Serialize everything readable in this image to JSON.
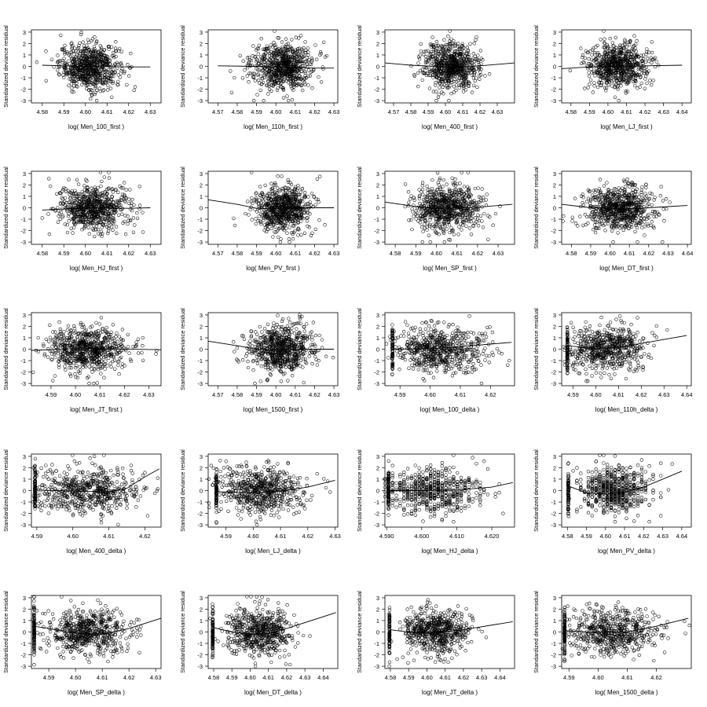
{
  "figure": {
    "ylabel": "Standardized deviance residual"
  },
  "chart_data": [
    {
      "type": "scatter",
      "xlabel": "log( Men_100_first )",
      "xticks": [
        4.58,
        4.59,
        4.6,
        4.61,
        4.62,
        4.63
      ],
      "xlim": [
        4.575,
        4.635
      ],
      "ylim": [
        -3,
        3
      ],
      "yticks": [
        -3,
        -2,
        -1,
        0,
        1,
        2,
        3
      ],
      "points_summary": {
        "n": 700,
        "x_center": 4.602,
        "x_spread": 0.007
      },
      "trend": [
        [
          4.58,
          0.1
        ],
        [
          4.59,
          0.05
        ],
        [
          4.6,
          0.0
        ],
        [
          4.61,
          -0.03
        ],
        [
          4.62,
          -0.05
        ],
        [
          4.63,
          -0.05
        ]
      ]
    },
    {
      "type": "scatter",
      "xlabel": "log( Men_110h_first )",
      "xticks": [
        4.57,
        4.58,
        4.59,
        4.6,
        4.61,
        4.62,
        4.63
      ],
      "xlim": [
        4.565,
        4.632
      ],
      "ylim": [
        -3,
        3
      ],
      "yticks": [
        -3,
        -2,
        -1,
        0,
        1,
        2,
        3
      ],
      "points_summary": {
        "n": 700,
        "x_center": 4.603,
        "x_spread": 0.008
      },
      "trend": [
        [
          4.57,
          0.05
        ],
        [
          4.59,
          0.0
        ],
        [
          4.6,
          -0.05
        ],
        [
          4.61,
          -0.1
        ],
        [
          4.62,
          -0.15
        ],
        [
          4.63,
          -0.15
        ]
      ]
    },
    {
      "type": "scatter",
      "xlabel": "log( Men_400_first )",
      "xticks": [
        4.57,
        4.58,
        4.59,
        4.6,
        4.61,
        4.62,
        4.63
      ],
      "xlim": [
        4.565,
        4.64
      ],
      "ylim": [
        -3,
        3
      ],
      "yticks": [
        -3,
        -2,
        -1,
        0,
        1,
        2,
        3
      ],
      "points_summary": {
        "n": 700,
        "x_center": 4.603,
        "x_spread": 0.008
      },
      "trend": [
        [
          4.565,
          0.3
        ],
        [
          4.58,
          0.1
        ],
        [
          4.6,
          -0.05
        ],
        [
          4.62,
          0.05
        ],
        [
          4.64,
          0.3
        ]
      ]
    },
    {
      "type": "scatter",
      "xlabel": "log( Men_LJ_first )",
      "xticks": [
        4.58,
        4.59,
        4.6,
        4.61,
        4.62,
        4.63,
        4.64
      ],
      "xlim": [
        4.575,
        4.645
      ],
      "ylim": [
        -3,
        3
      ],
      "yticks": [
        -3,
        -2,
        -1,
        0,
        1,
        2,
        3
      ],
      "points_summary": {
        "n": 700,
        "x_center": 4.605,
        "x_spread": 0.008
      },
      "trend": [
        [
          4.575,
          -0.2
        ],
        [
          4.59,
          -0.05
        ],
        [
          4.6,
          0.0
        ],
        [
          4.62,
          0.05
        ],
        [
          4.64,
          0.1
        ]
      ]
    },
    {
      "type": "scatter",
      "xlabel": "log( Men_HJ_first )",
      "xticks": [
        4.58,
        4.59,
        4.6,
        4.61,
        4.62,
        4.63
      ],
      "xlim": [
        4.575,
        4.635
      ],
      "ylim": [
        -3,
        3
      ],
      "yticks": [
        -3,
        -2,
        -1,
        0,
        1,
        2,
        3
      ],
      "points_summary": {
        "n": 700,
        "x_center": 4.603,
        "x_spread": 0.008
      },
      "trend": [
        [
          4.58,
          -0.2
        ],
        [
          4.6,
          0.0
        ],
        [
          4.62,
          -0.05
        ],
        [
          4.63,
          0.0
        ]
      ]
    },
    {
      "type": "scatter",
      "xlabel": "log( Men_PV_first )",
      "xticks": [
        4.57,
        4.58,
        4.59,
        4.6,
        4.61,
        4.62,
        4.63
      ],
      "xlim": [
        4.565,
        4.632
      ],
      "ylim": [
        -3,
        3
      ],
      "yticks": [
        -3,
        -2,
        -1,
        0,
        1,
        2,
        3
      ],
      "points_summary": {
        "n": 700,
        "x_center": 4.603,
        "x_spread": 0.007
      },
      "trend": [
        [
          4.565,
          0.7
        ],
        [
          4.58,
          0.3
        ],
        [
          4.59,
          -0.05
        ],
        [
          4.6,
          -0.1
        ],
        [
          4.61,
          0.0
        ],
        [
          4.63,
          0.0
        ]
      ]
    },
    {
      "type": "scatter",
      "xlabel": "log( Men_SP_first )",
      "xticks": [
        4.58,
        4.59,
        4.6,
        4.61,
        4.62,
        4.63
      ],
      "xlim": [
        4.575,
        4.638
      ],
      "ylim": [
        -3,
        3
      ],
      "yticks": [
        -3,
        -2,
        -1,
        0,
        1,
        2,
        3
      ],
      "points_summary": {
        "n": 700,
        "x_center": 4.605,
        "x_spread": 0.008
      },
      "trend": [
        [
          4.575,
          0.5
        ],
        [
          4.59,
          0.1
        ],
        [
          4.6,
          -0.05
        ],
        [
          4.62,
          0.05
        ],
        [
          4.637,
          0.3
        ]
      ]
    },
    {
      "type": "scatter",
      "xlabel": "log( Men_DT_first )",
      "xticks": [
        4.58,
        4.59,
        4.6,
        4.61,
        4.62,
        4.63,
        4.64
      ],
      "xlim": [
        4.575,
        4.642
      ],
      "ylim": [
        -3,
        3
      ],
      "yticks": [
        -3,
        -2,
        -1,
        0,
        1,
        2,
        3
      ],
      "points_summary": {
        "n": 700,
        "x_center": 4.605,
        "x_spread": 0.009
      },
      "trend": [
        [
          4.575,
          0.3
        ],
        [
          4.59,
          0.0
        ],
        [
          4.61,
          -0.1
        ],
        [
          4.63,
          0.1
        ],
        [
          4.64,
          0.2
        ]
      ]
    },
    {
      "type": "scatter",
      "xlabel": "log( Men_JT_first )",
      "xticks": [
        4.59,
        4.6,
        4.61,
        4.62,
        4.63
      ],
      "xlim": [
        4.582,
        4.635
      ],
      "ylim": [
        -3,
        3
      ],
      "yticks": [
        -3,
        -2,
        -1,
        0,
        1,
        2,
        3
      ],
      "points_summary": {
        "n": 700,
        "x_center": 4.605,
        "x_spread": 0.008
      },
      "trend": [
        [
          4.582,
          -0.1
        ],
        [
          4.6,
          0.05
        ],
        [
          4.61,
          0.05
        ],
        [
          4.635,
          -0.05
        ]
      ]
    },
    {
      "type": "scatter",
      "xlabel": "log( Men_1500_first )",
      "xticks": [
        4.57,
        4.58,
        4.59,
        4.6,
        4.61,
        4.62,
        4.63
      ],
      "xlim": [
        4.565,
        4.632
      ],
      "ylim": [
        -3,
        3
      ],
      "yticks": [
        -3,
        -2,
        -1,
        0,
        1,
        2,
        3
      ],
      "points_summary": {
        "n": 700,
        "x_center": 4.603,
        "x_spread": 0.008
      },
      "trend": [
        [
          4.565,
          0.7
        ],
        [
          4.58,
          0.3
        ],
        [
          4.59,
          0.0
        ],
        [
          4.6,
          -0.05
        ],
        [
          4.62,
          0.0
        ],
        [
          4.63,
          0.0
        ]
      ]
    },
    {
      "type": "scatter",
      "xlabel": "log( Men_100_delta )",
      "xticks": [
        4.59,
        4.6,
        4.61,
        4.62
      ],
      "xlim": [
        4.585,
        4.628
      ],
      "ylim": [
        -3,
        3
      ],
      "yticks": [
        -3,
        -2,
        -1,
        0,
        1,
        2,
        3
      ],
      "points_summary": {
        "n": 700,
        "x_center": 4.603,
        "x_spread": 0.008,
        "pile_x": 4.5875
      },
      "trend": [
        [
          4.5875,
          0.0
        ],
        [
          4.6,
          0.05
        ],
        [
          4.61,
          0.2
        ],
        [
          4.62,
          0.45
        ],
        [
          4.627,
          0.6
        ]
      ]
    },
    {
      "type": "scatter",
      "xlabel": "log( Men_110h_delta )",
      "xticks": [
        4.59,
        4.6,
        4.61,
        4.62,
        4.63,
        4.64
      ],
      "xlim": [
        4.585,
        4.642
      ],
      "ylim": [
        -3,
        3
      ],
      "yticks": [
        -3,
        -2,
        -1,
        0,
        1,
        2,
        3
      ],
      "points_summary": {
        "n": 700,
        "x_center": 4.605,
        "x_spread": 0.009,
        "pile_x": 4.5875
      },
      "trend": [
        [
          4.5875,
          0.3
        ],
        [
          4.6,
          0.05
        ],
        [
          4.61,
          0.15
        ],
        [
          4.62,
          0.5
        ],
        [
          4.64,
          1.2
        ]
      ]
    },
    {
      "type": "scatter",
      "xlabel": "log( Men_400_delta )",
      "xticks": [
        4.59,
        4.6,
        4.61,
        4.62
      ],
      "xlim": [
        4.5885,
        4.6245
      ],
      "ylim": [
        -3,
        3
      ],
      "yticks": [
        -3,
        -2,
        -1,
        0,
        1,
        2,
        3
      ],
      "points_summary": {
        "n": 700,
        "x_center": 4.603,
        "x_spread": 0.008,
        "pile_x": 4.5895
      },
      "trend": [
        [
          4.5895,
          0.05
        ],
        [
          4.6,
          -0.05
        ],
        [
          4.61,
          -0.1
        ],
        [
          4.615,
          0.2
        ],
        [
          4.62,
          1.2
        ],
        [
          4.624,
          1.9
        ]
      ]
    },
    {
      "type": "scatter",
      "xlabel": "log( Men_LJ_delta )",
      "xticks": [
        4.59,
        4.6,
        4.61,
        4.62,
        4.63
      ],
      "xlim": [
        4.5835,
        4.631
      ],
      "ylim": [
        -3,
        3
      ],
      "yticks": [
        -3,
        -2,
        -1,
        0,
        1,
        2,
        3
      ],
      "points_summary": {
        "n": 700,
        "x_center": 4.603,
        "x_spread": 0.008,
        "pile_x": 4.5865
      },
      "trend": [
        [
          4.5865,
          -0.1
        ],
        [
          4.6,
          -0.2
        ],
        [
          4.61,
          -0.05
        ],
        [
          4.62,
          0.3
        ],
        [
          4.63,
          0.9
        ]
      ]
    },
    {
      "type": "scatter",
      "xlabel": "log( Men_HJ_delta )",
      "xticks": [
        4.59,
        4.6,
        4.61,
        4.62
      ],
      "xlim": [
        4.5895,
        4.6265
      ],
      "ylim": [
        -3,
        3
      ],
      "yticks": [
        -3,
        -2,
        -1,
        0,
        1,
        2,
        3
      ],
      "points_summary": {
        "n": 700,
        "x_center": 4.603,
        "x_spread": 0.007,
        "pile_x": 4.5905,
        "discrete": true
      },
      "trend": [
        [
          4.5905,
          0.0
        ],
        [
          4.6,
          0.0
        ],
        [
          4.61,
          0.05
        ],
        [
          4.62,
          0.3
        ],
        [
          4.626,
          0.7
        ]
      ]
    },
    {
      "type": "scatter",
      "xlabel": "log( Men_PV_delta )",
      "xticks": [
        4.58,
        4.59,
        4.6,
        4.61,
        4.62,
        4.63,
        4.64
      ],
      "xlim": [
        4.577,
        4.645
      ],
      "ylim": [
        -3,
        3
      ],
      "yticks": [
        -3,
        -2,
        -1,
        0,
        1,
        2,
        3
      ],
      "points_summary": {
        "n": 700,
        "x_center": 4.605,
        "x_spread": 0.009,
        "pile_x": 4.5805,
        "discrete": true
      },
      "trend": [
        [
          4.5805,
          0.4
        ],
        [
          4.59,
          -0.2
        ],
        [
          4.6,
          -0.3
        ],
        [
          4.61,
          -0.15
        ],
        [
          4.62,
          0.3
        ],
        [
          4.64,
          1.7
        ]
      ]
    },
    {
      "type": "scatter",
      "xlabel": "log( Men_SP_delta )",
      "xticks": [
        4.59,
        4.6,
        4.61,
        4.62,
        4.63
      ],
      "xlim": [
        4.5835,
        4.632
      ],
      "ylim": [
        -3,
        3
      ],
      "yticks": [
        -3,
        -2,
        -1,
        0,
        1,
        2,
        3
      ],
      "points_summary": {
        "n": 700,
        "x_center": 4.604,
        "x_spread": 0.008,
        "pile_x": 4.5845
      },
      "trend": [
        [
          4.5845,
          0.5
        ],
        [
          4.59,
          0.3
        ],
        [
          4.6,
          -0.1
        ],
        [
          4.61,
          -0.2
        ],
        [
          4.62,
          0.3
        ],
        [
          4.632,
          1.2
        ]
      ]
    },
    {
      "type": "scatter",
      "xlabel": "log( Men_DT_delta )",
      "xticks": [
        4.58,
        4.59,
        4.6,
        4.61,
        4.62,
        4.63,
        4.64
      ],
      "xlim": [
        4.577,
        4.648
      ],
      "ylim": [
        -3,
        3
      ],
      "yticks": [
        -3,
        -2,
        -1,
        0,
        1,
        2,
        3
      ],
      "points_summary": {
        "n": 700,
        "x_center": 4.605,
        "x_spread": 0.009,
        "pile_x": 4.5795
      },
      "trend": [
        [
          4.5795,
          0.4
        ],
        [
          4.59,
          0.0
        ],
        [
          4.6,
          -0.2
        ],
        [
          4.61,
          -0.1
        ],
        [
          4.62,
          0.3
        ],
        [
          4.647,
          1.7
        ]
      ]
    },
    {
      "type": "scatter",
      "xlabel": "log( Men_JT_delta )",
      "xticks": [
        4.58,
        4.59,
        4.6,
        4.61,
        4.62,
        4.63,
        4.64
      ],
      "xlim": [
        4.577,
        4.648
      ],
      "ylim": [
        -3,
        3
      ],
      "yticks": [
        -3,
        -2,
        -1,
        0,
        1,
        2,
        3
      ],
      "points_summary": {
        "n": 700,
        "x_center": 4.605,
        "x_spread": 0.009,
        "pile_x": 4.5795
      },
      "trend": [
        [
          4.5795,
          0.2
        ],
        [
          4.59,
          0.0
        ],
        [
          4.6,
          -0.1
        ],
        [
          4.62,
          0.2
        ],
        [
          4.647,
          0.9
        ]
      ]
    },
    {
      "type": "scatter",
      "xlabel": "log( Men_1500_delta )",
      "xticks": [
        4.59,
        4.6,
        4.61,
        4.62
      ],
      "xlim": [
        4.5875,
        4.632
      ],
      "ylim": [
        -3,
        3
      ],
      "yticks": [
        -3,
        -2,
        -1,
        0,
        1,
        2,
        3
      ],
      "points_summary": {
        "n": 700,
        "x_center": 4.605,
        "x_spread": 0.008,
        "pile_x": 4.5885
      },
      "trend": [
        [
          4.5885,
          0.1
        ],
        [
          4.6,
          -0.05
        ],
        [
          4.61,
          0.0
        ],
        [
          4.62,
          0.5
        ],
        [
          4.631,
          1.2
        ]
      ]
    }
  ]
}
